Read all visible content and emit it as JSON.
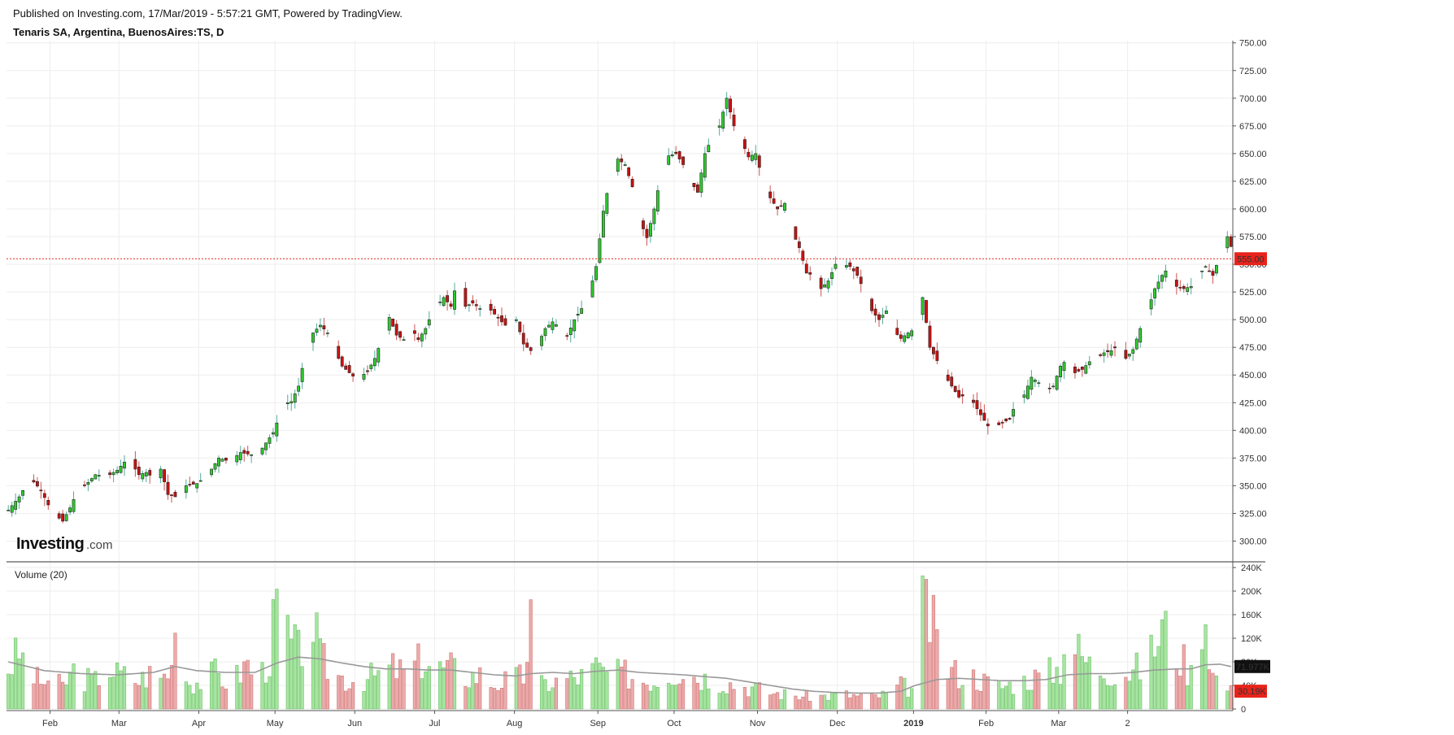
{
  "header": {
    "published": "Published on Investing.com, 17/Mar/2019 - 5:57:21 GMT, Powered by TradingView.",
    "symbol": "Tenaris SA, Argentina, BuenosAires:TS, D"
  },
  "logo": {
    "text_main": "Investing",
    "text_suffix": ".com"
  },
  "colors": {
    "up": "#2ecc2e",
    "down": "#cc1111",
    "up_volume": "#a6e6a0",
    "down_volume": "#eeaaaa",
    "last_price": "#e8231b",
    "ma_line": "#999999",
    "grid": "#eeeeee",
    "volume_ma_badge": "#111111"
  },
  "chart_data": [
    {
      "type": "candlestick",
      "title": "Tenaris SA, Argentina, BuenosAires:TS, D",
      "y_ticks": [
        "750.00",
        "725.00",
        "700.00",
        "675.00",
        "650.00",
        "625.00",
        "600.00",
        "575.00",
        "550.00",
        "525.00",
        "500.00",
        "475.00",
        "450.00",
        "425.00",
        "400.00",
        "375.00",
        "350.00",
        "325.00",
        "300.00"
      ],
      "ylim": [
        282,
        752
      ],
      "x_ticks": [
        "Feb",
        "Mar",
        "Apr",
        "May",
        "Jun",
        "Jul",
        "Aug",
        "Sep",
        "Oct",
        "Nov",
        "Dec",
        "2019",
        "Feb",
        "Mar",
        "2"
      ],
      "last_price": 555,
      "last_price_label": "555.00",
      "anchors": [
        [
          0,
          328
        ],
        [
          3,
          340
        ],
        [
          6,
          357
        ],
        [
          9,
          346
        ],
        [
          12,
          326
        ],
        [
          15,
          318
        ],
        [
          17,
          330
        ],
        [
          19,
          345
        ],
        [
          22,
          353
        ],
        [
          24,
          360
        ],
        [
          27,
          358
        ],
        [
          30,
          364
        ],
        [
          33,
          375
        ],
        [
          36,
          360
        ],
        [
          38,
          362
        ],
        [
          40,
          357
        ],
        [
          42,
          365
        ],
        [
          44,
          342
        ],
        [
          46,
          340
        ],
        [
          49,
          350
        ],
        [
          52,
          352
        ],
        [
          55,
          360
        ],
        [
          58,
          375
        ],
        [
          61,
          372
        ],
        [
          64,
          380
        ],
        [
          67,
          378
        ],
        [
          70,
          384
        ],
        [
          73,
          398
        ],
        [
          76,
          424
        ],
        [
          78,
          426
        ],
        [
          80,
          440
        ],
        [
          82,
          472
        ],
        [
          84,
          488
        ],
        [
          86,
          495
        ],
        [
          88,
          488
        ],
        [
          90,
          472
        ],
        [
          92,
          458
        ],
        [
          94,
          452
        ],
        [
          96,
          446
        ],
        [
          99,
          453
        ],
        [
          101,
          465
        ],
        [
          103,
          483
        ],
        [
          105,
          502
        ],
        [
          107,
          486
        ],
        [
          109,
          482
        ],
        [
          111,
          493
        ],
        [
          113,
          482
        ],
        [
          115,
          492
        ],
        [
          117,
          508
        ],
        [
          120,
          520
        ],
        [
          122,
          512
        ],
        [
          124,
          540
        ],
        [
          126,
          512
        ],
        [
          128,
          515
        ],
        [
          130,
          510
        ],
        [
          132,
          512
        ],
        [
          134,
          505
        ],
        [
          136,
          498
        ],
        [
          138,
          492
        ],
        [
          140,
          500
        ],
        [
          142,
          478
        ],
        [
          144,
          472
        ],
        [
          146,
          478
        ],
        [
          148,
          492
        ],
        [
          150,
          498
        ],
        [
          152,
          493
        ],
        [
          154,
          485
        ],
        [
          156,
          500
        ],
        [
          158,
          510
        ],
        [
          160,
          522
        ],
        [
          162,
          548
        ],
        [
          164,
          598
        ],
        [
          166,
          630
        ],
        [
          168,
          645
        ],
        [
          170,
          640
        ],
        [
          172,
          620
        ],
        [
          174,
          590
        ],
        [
          176,
          574
        ],
        [
          178,
          600
        ],
        [
          180,
          633
        ],
        [
          182,
          648
        ],
        [
          184,
          650
        ],
        [
          186,
          640
        ],
        [
          188,
          625
        ],
        [
          190,
          615
        ],
        [
          192,
          650
        ],
        [
          194,
          665
        ],
        [
          196,
          675
        ],
        [
          198,
          700
        ],
        [
          200,
          675
        ],
        [
          202,
          662
        ],
        [
          204,
          647
        ],
        [
          206,
          650
        ],
        [
          208,
          625
        ],
        [
          210,
          610
        ],
        [
          212,
          600
        ],
        [
          214,
          605
        ],
        [
          216,
          580
        ],
        [
          218,
          565
        ],
        [
          220,
          542
        ],
        [
          222,
          540
        ],
        [
          224,
          528
        ],
        [
          226,
          535
        ],
        [
          228,
          550
        ],
        [
          230,
          550
        ],
        [
          232,
          548
        ],
        [
          234,
          540
        ],
        [
          236,
          525
        ],
        [
          238,
          508
        ],
        [
          240,
          500
        ],
        [
          242,
          508
        ],
        [
          244,
          490
        ],
        [
          246,
          483
        ],
        [
          248,
          488
        ],
        [
          250,
          492
        ],
        [
          252,
          520
        ],
        [
          254,
          475
        ],
        [
          256,
          463
        ],
        [
          258,
          450
        ],
        [
          260,
          440
        ],
        [
          262,
          430
        ],
        [
          264,
          432
        ],
        [
          266,
          425
        ],
        [
          268,
          414
        ],
        [
          270,
          404
        ],
        [
          272,
          403
        ],
        [
          274,
          407
        ],
        [
          276,
          410
        ],
        [
          278,
          428
        ],
        [
          280,
          432
        ],
        [
          282,
          448
        ],
        [
          284,
          443
        ],
        [
          286,
          435
        ],
        [
          288,
          440
        ],
        [
          290,
          458
        ],
        [
          292,
          465
        ],
        [
          294,
          452
        ],
        [
          296,
          455
        ],
        [
          298,
          462
        ],
        [
          300,
          465
        ],
        [
          302,
          470
        ],
        [
          304,
          472
        ],
        [
          306,
          477
        ],
        [
          308,
          465
        ],
        [
          310,
          473
        ],
        [
          312,
          492
        ],
        [
          314,
          508
        ],
        [
          316,
          528
        ],
        [
          318,
          540
        ],
        [
          320,
          548
        ],
        [
          322,
          530
        ],
        [
          324,
          528
        ],
        [
          326,
          530
        ],
        [
          328,
          540
        ],
        [
          330,
          548
        ],
        [
          332,
          540
        ],
        [
          334,
          558
        ],
        [
          336,
          575
        ],
        [
          337,
          566
        ]
      ]
    },
    {
      "type": "bar",
      "title": "Volume (20)",
      "y_ticks": [
        "240K",
        "200K",
        "160K",
        "120K",
        "80K",
        "40K",
        "0"
      ],
      "ylim": [
        0,
        240
      ],
      "last_volume_ma_label": "71.977K",
      "last_volume_label": "30.19K",
      "anchors": [
        [
          0,
          70
        ],
        [
          3,
          95
        ],
        [
          6,
          60
        ],
        [
          9,
          45
        ],
        [
          12,
          50
        ],
        [
          15,
          38
        ],
        [
          18,
          65
        ],
        [
          21,
          52
        ],
        [
          24,
          48
        ],
        [
          27,
          75
        ],
        [
          30,
          60
        ],
        [
          33,
          55
        ],
        [
          36,
          48
        ],
        [
          39,
          60
        ],
        [
          42,
          52
        ],
        [
          45,
          70
        ],
        [
          46,
          225
        ],
        [
          48,
          55
        ],
        [
          51,
          45
        ],
        [
          54,
          48
        ],
        [
          57,
          62
        ],
        [
          60,
          48
        ],
        [
          63,
          55
        ],
        [
          66,
          78
        ],
        [
          69,
          50
        ],
        [
          72,
          90
        ],
        [
          74,
          175
        ],
        [
          76,
          140
        ],
        [
          78,
          110
        ],
        [
          80,
          95
        ],
        [
          82,
          125
        ],
        [
          84,
          150
        ],
        [
          86,
          85
        ],
        [
          90,
          60
        ],
        [
          94,
          48
        ],
        [
          98,
          52
        ],
        [
          102,
          58
        ],
        [
          106,
          70
        ],
        [
          110,
          60
        ],
        [
          114,
          85
        ],
        [
          118,
          68
        ],
        [
          122,
          70
        ],
        [
          126,
          55
        ],
        [
          130,
          58
        ],
        [
          134,
          42
        ],
        [
          138,
          50
        ],
        [
          142,
          55
        ],
        [
          144,
          150
        ],
        [
          146,
          40
        ],
        [
          150,
          45
        ],
        [
          154,
          52
        ],
        [
          158,
          55
        ],
        [
          162,
          70
        ],
        [
          166,
          58
        ],
        [
          170,
          60
        ],
        [
          174,
          50
        ],
        [
          178,
          48
        ],
        [
          182,
          62
        ],
        [
          186,
          68
        ],
        [
          190,
          55
        ],
        [
          194,
          52
        ],
        [
          198,
          45
        ],
        [
          202,
          40
        ],
        [
          206,
          35
        ],
        [
          210,
          28
        ],
        [
          214,
          25
        ],
        [
          218,
          22
        ],
        [
          222,
          22
        ],
        [
          226,
          22
        ],
        [
          230,
          25
        ],
        [
          234,
          22
        ],
        [
          238,
          20
        ],
        [
          242,
          25
        ],
        [
          246,
          40
        ],
        [
          250,
          30
        ],
        [
          252,
          165
        ],
        [
          254,
          155
        ],
        [
          258,
          70
        ],
        [
          262,
          60
        ],
        [
          266,
          55
        ],
        [
          270,
          45
        ],
        [
          274,
          38
        ],
        [
          278,
          45
        ],
        [
          282,
          52
        ],
        [
          286,
          60
        ],
        [
          290,
          70
        ],
        [
          292,
          170
        ],
        [
          294,
          105
        ],
        [
          298,
          75
        ],
        [
          302,
          68
        ],
        [
          306,
          62
        ],
        [
          310,
          65
        ],
        [
          314,
          78
        ],
        [
          318,
          140
        ],
        [
          320,
          120
        ],
        [
          322,
          100
        ],
        [
          324,
          80
        ],
        [
          326,
          60
        ],
        [
          328,
          200
        ],
        [
          330,
          165
        ],
        [
          332,
          60
        ],
        [
          334,
          45
        ],
        [
          337,
          30
        ]
      ],
      "ma_anchors": [
        [
          0,
          80
        ],
        [
          10,
          65
        ],
        [
          20,
          60
        ],
        [
          30,
          58
        ],
        [
          40,
          62
        ],
        [
          46,
          72
        ],
        [
          52,
          65
        ],
        [
          60,
          62
        ],
        [
          68,
          62
        ],
        [
          74,
          78
        ],
        [
          80,
          88
        ],
        [
          86,
          85
        ],
        [
          92,
          78
        ],
        [
          98,
          72
        ],
        [
          104,
          68
        ],
        [
          110,
          68
        ],
        [
          116,
          66
        ],
        [
          122,
          66
        ],
        [
          128,
          62
        ],
        [
          134,
          58
        ],
        [
          140,
          56
        ],
        [
          144,
          60
        ],
        [
          150,
          62
        ],
        [
          156,
          60
        ],
        [
          162,
          64
        ],
        [
          168,
          66
        ],
        [
          174,
          62
        ],
        [
          180,
          60
        ],
        [
          186,
          58
        ],
        [
          192,
          55
        ],
        [
          198,
          52
        ],
        [
          204,
          46
        ],
        [
          210,
          40
        ],
        [
          216,
          34
        ],
        [
          222,
          30
        ],
        [
          228,
          28
        ],
        [
          234,
          27
        ],
        [
          240,
          27
        ],
        [
          246,
          30
        ],
        [
          250,
          40
        ],
        [
          256,
          50
        ],
        [
          262,
          52
        ],
        [
          268,
          50
        ],
        [
          274,
          48
        ],
        [
          280,
          48
        ],
        [
          286,
          50
        ],
        [
          292,
          58
        ],
        [
          298,
          60
        ],
        [
          304,
          60
        ],
        [
          310,
          62
        ],
        [
          316,
          66
        ],
        [
          322,
          68
        ],
        [
          326,
          68
        ],
        [
          330,
          75
        ],
        [
          334,
          76
        ],
        [
          337,
          72
        ]
      ]
    }
  ]
}
